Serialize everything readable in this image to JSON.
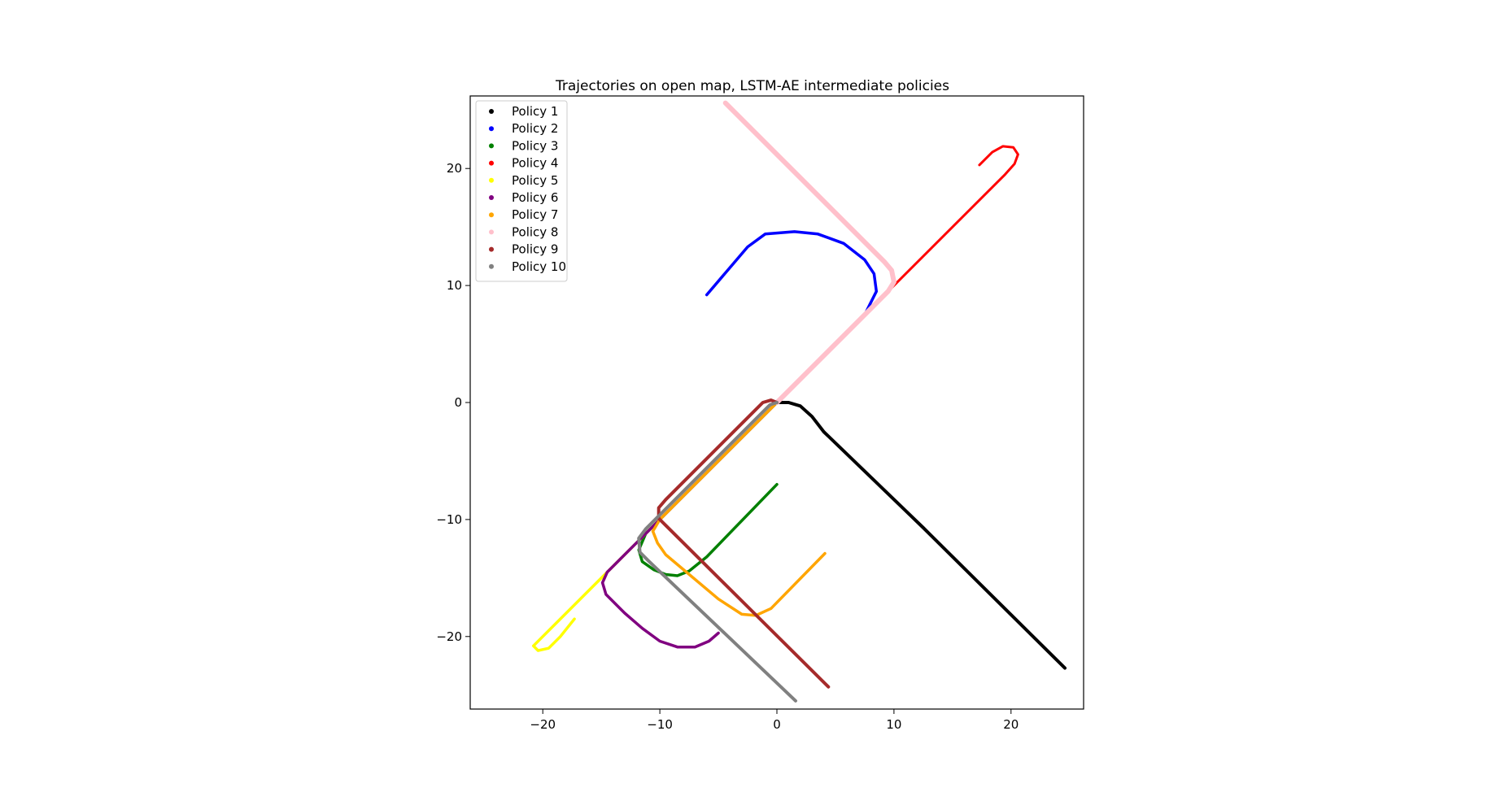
{
  "chart_data": {
    "type": "scatter",
    "title": "Trajectories on open map, LSTM-AE intermediate policies",
    "xlabel": "",
    "ylabel": "",
    "xlim": [
      -26.2,
      26.2
    ],
    "ylim": [
      -26.2,
      26.2
    ],
    "xticks": [
      -20,
      -10,
      0,
      10,
      20
    ],
    "yticks": [
      -20,
      -10,
      0,
      10,
      20
    ],
    "xtick_labels": [
      "−20",
      "−10",
      "0",
      "10",
      "20"
    ],
    "ytick_labels": [
      "−20",
      "−10",
      "0",
      "10",
      "20"
    ],
    "grid": false,
    "legend_position": "top-left",
    "series": [
      {
        "name": "Policy 1",
        "color": "#000000",
        "width": 4,
        "points": [
          [
            0,
            0
          ],
          [
            1,
            0
          ],
          [
            2,
            -0.3
          ],
          [
            3,
            -1.2
          ],
          [
            4,
            -2.5
          ],
          [
            12.5,
            -10.7
          ],
          [
            24.6,
            -22.7
          ]
        ]
      },
      {
        "name": "Policy 2",
        "color": "#0000ff",
        "width": 3.5,
        "points": [
          [
            0,
            0
          ],
          [
            7.5,
            7.5
          ],
          [
            8.5,
            9.5
          ],
          [
            8.3,
            11
          ],
          [
            7.5,
            12.2
          ],
          [
            5.7,
            13.6
          ],
          [
            3.5,
            14.4
          ],
          [
            1.5,
            14.6
          ],
          [
            -1,
            14.4
          ],
          [
            -2.5,
            13.3
          ],
          [
            -6,
            9.2
          ]
        ]
      },
      {
        "name": "Policy 3",
        "color": "#008000",
        "width": 3.5,
        "points": [
          [
            0,
            0
          ],
          [
            -10,
            -10
          ],
          [
            -11.2,
            -11.2
          ],
          [
            -11.8,
            -12.6
          ],
          [
            -11.5,
            -13.6
          ],
          [
            -10.5,
            -14.3
          ],
          [
            -9.5,
            -14.7
          ],
          [
            -8.5,
            -14.8
          ],
          [
            -7.5,
            -14.4
          ],
          [
            -6,
            -13.2
          ],
          [
            0,
            -7
          ]
        ]
      },
      {
        "name": "Policy 4",
        "color": "#ff0000",
        "width": 3,
        "points": [
          [
            0,
            0
          ],
          [
            19.5,
            19.5
          ],
          [
            20.3,
            20.4
          ],
          [
            20.6,
            21.2
          ],
          [
            20.2,
            21.8
          ],
          [
            19.3,
            21.9
          ],
          [
            18.4,
            21.4
          ],
          [
            17.3,
            20.3
          ]
        ]
      },
      {
        "name": "Policy 5",
        "color": "#ffff00",
        "width": 3.5,
        "points": [
          [
            0,
            0
          ],
          [
            -20.2,
            -20.2
          ],
          [
            -20.8,
            -20.8
          ],
          [
            -20.4,
            -21.2
          ],
          [
            -19.5,
            -21
          ],
          [
            -18.5,
            -20
          ],
          [
            -17.3,
            -18.5
          ]
        ]
      },
      {
        "name": "Policy 6",
        "color": "#800080",
        "width": 3.5,
        "points": [
          [
            0,
            0
          ],
          [
            -14.5,
            -14.5
          ],
          [
            -14.9,
            -15.4
          ],
          [
            -14.6,
            -16.4
          ],
          [
            -13,
            -18
          ],
          [
            -11.5,
            -19.3
          ],
          [
            -10,
            -20.4
          ],
          [
            -8.5,
            -20.9
          ],
          [
            -7,
            -20.9
          ],
          [
            -5.8,
            -20.4
          ],
          [
            -5,
            -19.7
          ]
        ]
      },
      {
        "name": "Policy 7",
        "color": "#ffa500",
        "width": 3.5,
        "points": [
          [
            0,
            0
          ],
          [
            -10,
            -10
          ],
          [
            -10.6,
            -11
          ],
          [
            -10.2,
            -12
          ],
          [
            -9.5,
            -13
          ],
          [
            -5,
            -16.8
          ],
          [
            -3,
            -18.1
          ],
          [
            -1.8,
            -18.2
          ],
          [
            -0.5,
            -17.6
          ],
          [
            4.1,
            -12.9
          ]
        ]
      },
      {
        "name": "Policy 8",
        "color": "#ffc0cb",
        "width": 6,
        "points": [
          [
            0,
            0
          ],
          [
            9.5,
            9.5
          ],
          [
            10,
            10.3
          ],
          [
            9.8,
            11.3
          ],
          [
            9.2,
            12
          ],
          [
            -4.4,
            25.6
          ]
        ]
      },
      {
        "name": "Policy 9",
        "color": "#a52a2a",
        "width": 4,
        "points": [
          [
            0,
            0
          ],
          [
            -0.5,
            0.2
          ],
          [
            -1.2,
            0
          ],
          [
            -9.5,
            -8.3
          ],
          [
            -10.1,
            -9
          ],
          [
            -10.1,
            -9.9
          ],
          [
            -9.5,
            -10.5
          ],
          [
            4.4,
            -24.3
          ]
        ]
      },
      {
        "name": "Policy 10",
        "color": "#808080",
        "width": 4,
        "points": [
          [
            0,
            0
          ],
          [
            -0.6,
            -0.2
          ],
          [
            -11.2,
            -10.8
          ],
          [
            -11.8,
            -11.6
          ],
          [
            -11.7,
            -12.8
          ],
          [
            -11,
            -13.5
          ],
          [
            1.6,
            -25.5
          ]
        ]
      }
    ]
  }
}
